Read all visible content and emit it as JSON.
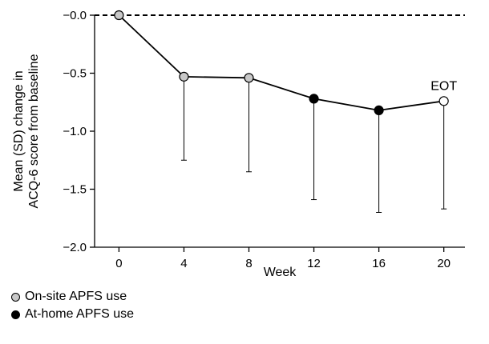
{
  "chart_data": {
    "type": "line",
    "xlabel": "Week",
    "ylabel": "Mean (SD) change in ACQ-6 score from baseline",
    "ylabel_lines": [
      "Mean (SD) change in",
      "ACQ-6 score from baseline"
    ],
    "xlim": [
      -1.5,
      21.3
    ],
    "ylim": [
      -2.0,
      0.0
    ],
    "x_ticks": [
      0,
      4,
      8,
      12,
      16,
      20
    ],
    "y_ticks": [
      0.0,
      -0.5,
      -1.0,
      -1.5,
      -2.0
    ],
    "y_tick_labels": [
      "−0.0",
      "−0.5",
      "−1.0",
      "−1.5",
      "−2.0"
    ],
    "reference_line": {
      "y": 0.0,
      "style": "dashed"
    },
    "grid": false,
    "series": [
      {
        "points": [
          {
            "x": 0,
            "y": 0.0,
            "sd": 0.0,
            "marker": "On-site APFS use"
          },
          {
            "x": 4,
            "y": -0.53,
            "sd": 0.72,
            "marker": "On-site APFS use"
          },
          {
            "x": 8,
            "y": -0.54,
            "sd": 0.81,
            "marker": "On-site APFS use"
          },
          {
            "x": 12,
            "y": -0.72,
            "sd": 0.87,
            "marker": "At-home APFS use"
          },
          {
            "x": 16,
            "y": -0.82,
            "sd": 0.88,
            "marker": "At-home APFS use"
          },
          {
            "x": 20,
            "y": -0.74,
            "sd": 0.93,
            "marker": "EOT"
          }
        ]
      }
    ],
    "annotations": [
      {
        "text": "EOT",
        "x": 20
      }
    ],
    "colors": {
      "on_site": "#c8c8c8",
      "at_home": "#000000",
      "eot": "#ffffff",
      "line": "#000000"
    }
  },
  "legend": {
    "placement": "bottom-left",
    "items": [
      {
        "label": "On-site APFS use",
        "color": "#c8c8c8"
      },
      {
        "label": "At-home APFS use",
        "color": "#000000"
      }
    ]
  }
}
